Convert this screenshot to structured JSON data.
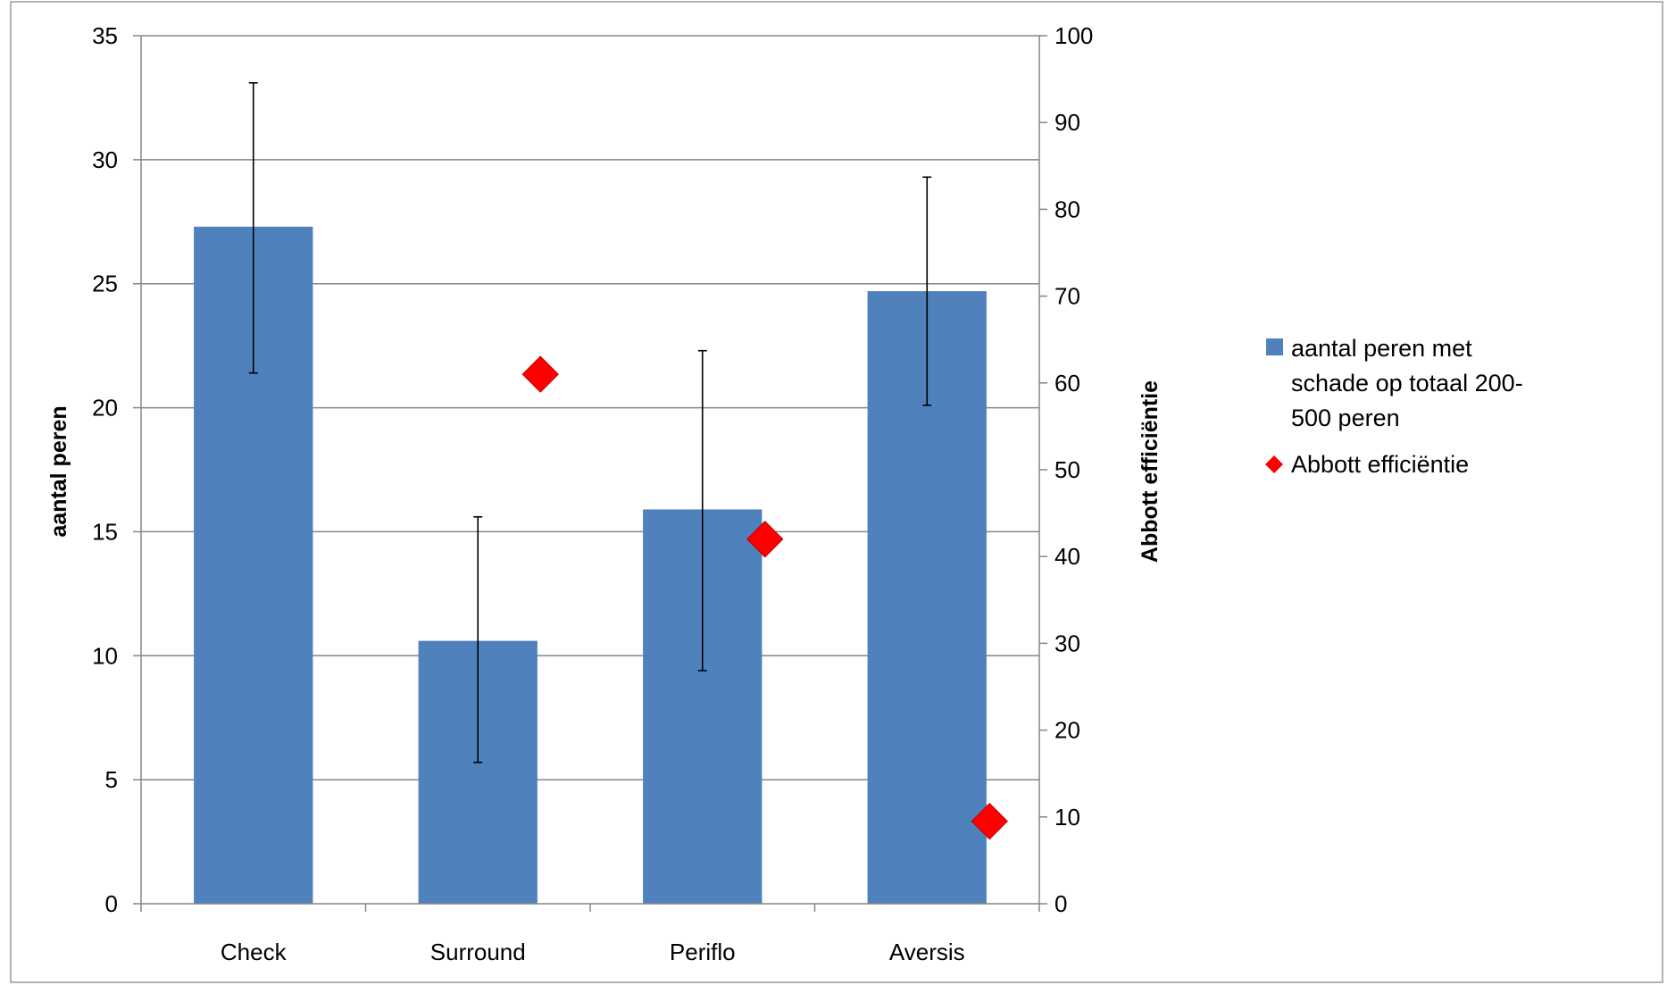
{
  "chart_data": {
    "type": "bar",
    "categories": [
      "Check",
      "Surround",
      "Periflo",
      "Aversis"
    ],
    "series": [
      {
        "name": "aantal peren met schade op totaal 200-500 peren",
        "kind": "bar",
        "axis": "left",
        "color": "#4F81BD",
        "values": [
          27.3,
          10.6,
          15.9,
          24.7
        ],
        "error_low": [
          21.4,
          5.7,
          9.4,
          20.1
        ],
        "error_high": [
          33.1,
          15.6,
          22.3,
          29.3
        ]
      },
      {
        "name": "Abbott efficiëntie",
        "kind": "marker",
        "marker": "diamond",
        "axis": "right",
        "color": "#FF0000",
        "values": [
          null,
          61,
          42,
          9.5
        ]
      }
    ],
    "ylabel": "aantal peren",
    "y2label": "Abbott efficiëntie",
    "ylim": [
      0,
      35
    ],
    "yticks": [
      "0",
      "5",
      "10",
      "15",
      "20",
      "25",
      "30",
      "35"
    ],
    "y2lim": [
      0,
      100
    ],
    "y2ticks": [
      "0",
      "10",
      "20",
      "30",
      "40",
      "50",
      "60",
      "70",
      "80",
      "90",
      "100"
    ],
    "grid": true,
    "legend_position": "right",
    "legend": {
      "bar_lines": [
        "aantal peren met",
        "schade op totaal 200-",
        "500 peren"
      ],
      "marker_label": "Abbott efficiëntie"
    }
  }
}
